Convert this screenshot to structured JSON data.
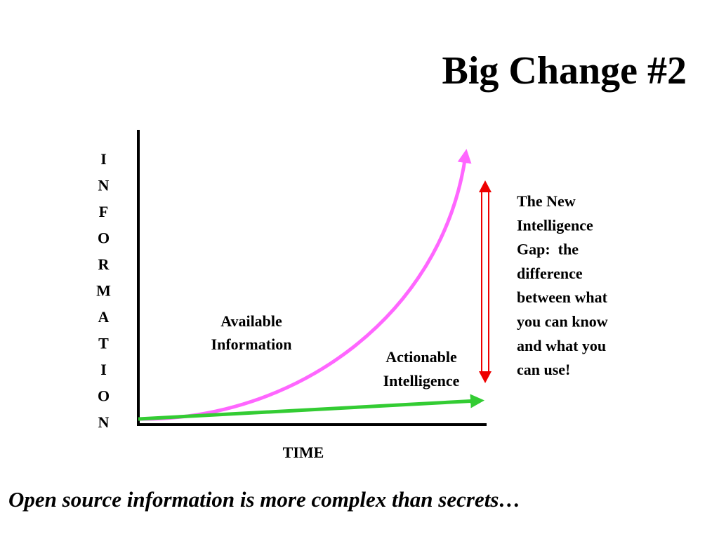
{
  "title": "Big Change #2",
  "y_axis_label": "INFORMATION",
  "x_axis_label": "TIME",
  "curves": [
    {
      "label_lines": [
        "Available",
        "Information"
      ]
    },
    {
      "label_lines": [
        "Actionable",
        "Intelligence"
      ]
    }
  ],
  "gap_annotation": {
    "lines": [
      "The New",
      "Intelligence",
      "Gap:  the",
      "difference",
      "between what",
      "you can know",
      "and what you",
      "can use!"
    ]
  },
  "footer": "Open source information is more complex than secrets…"
}
